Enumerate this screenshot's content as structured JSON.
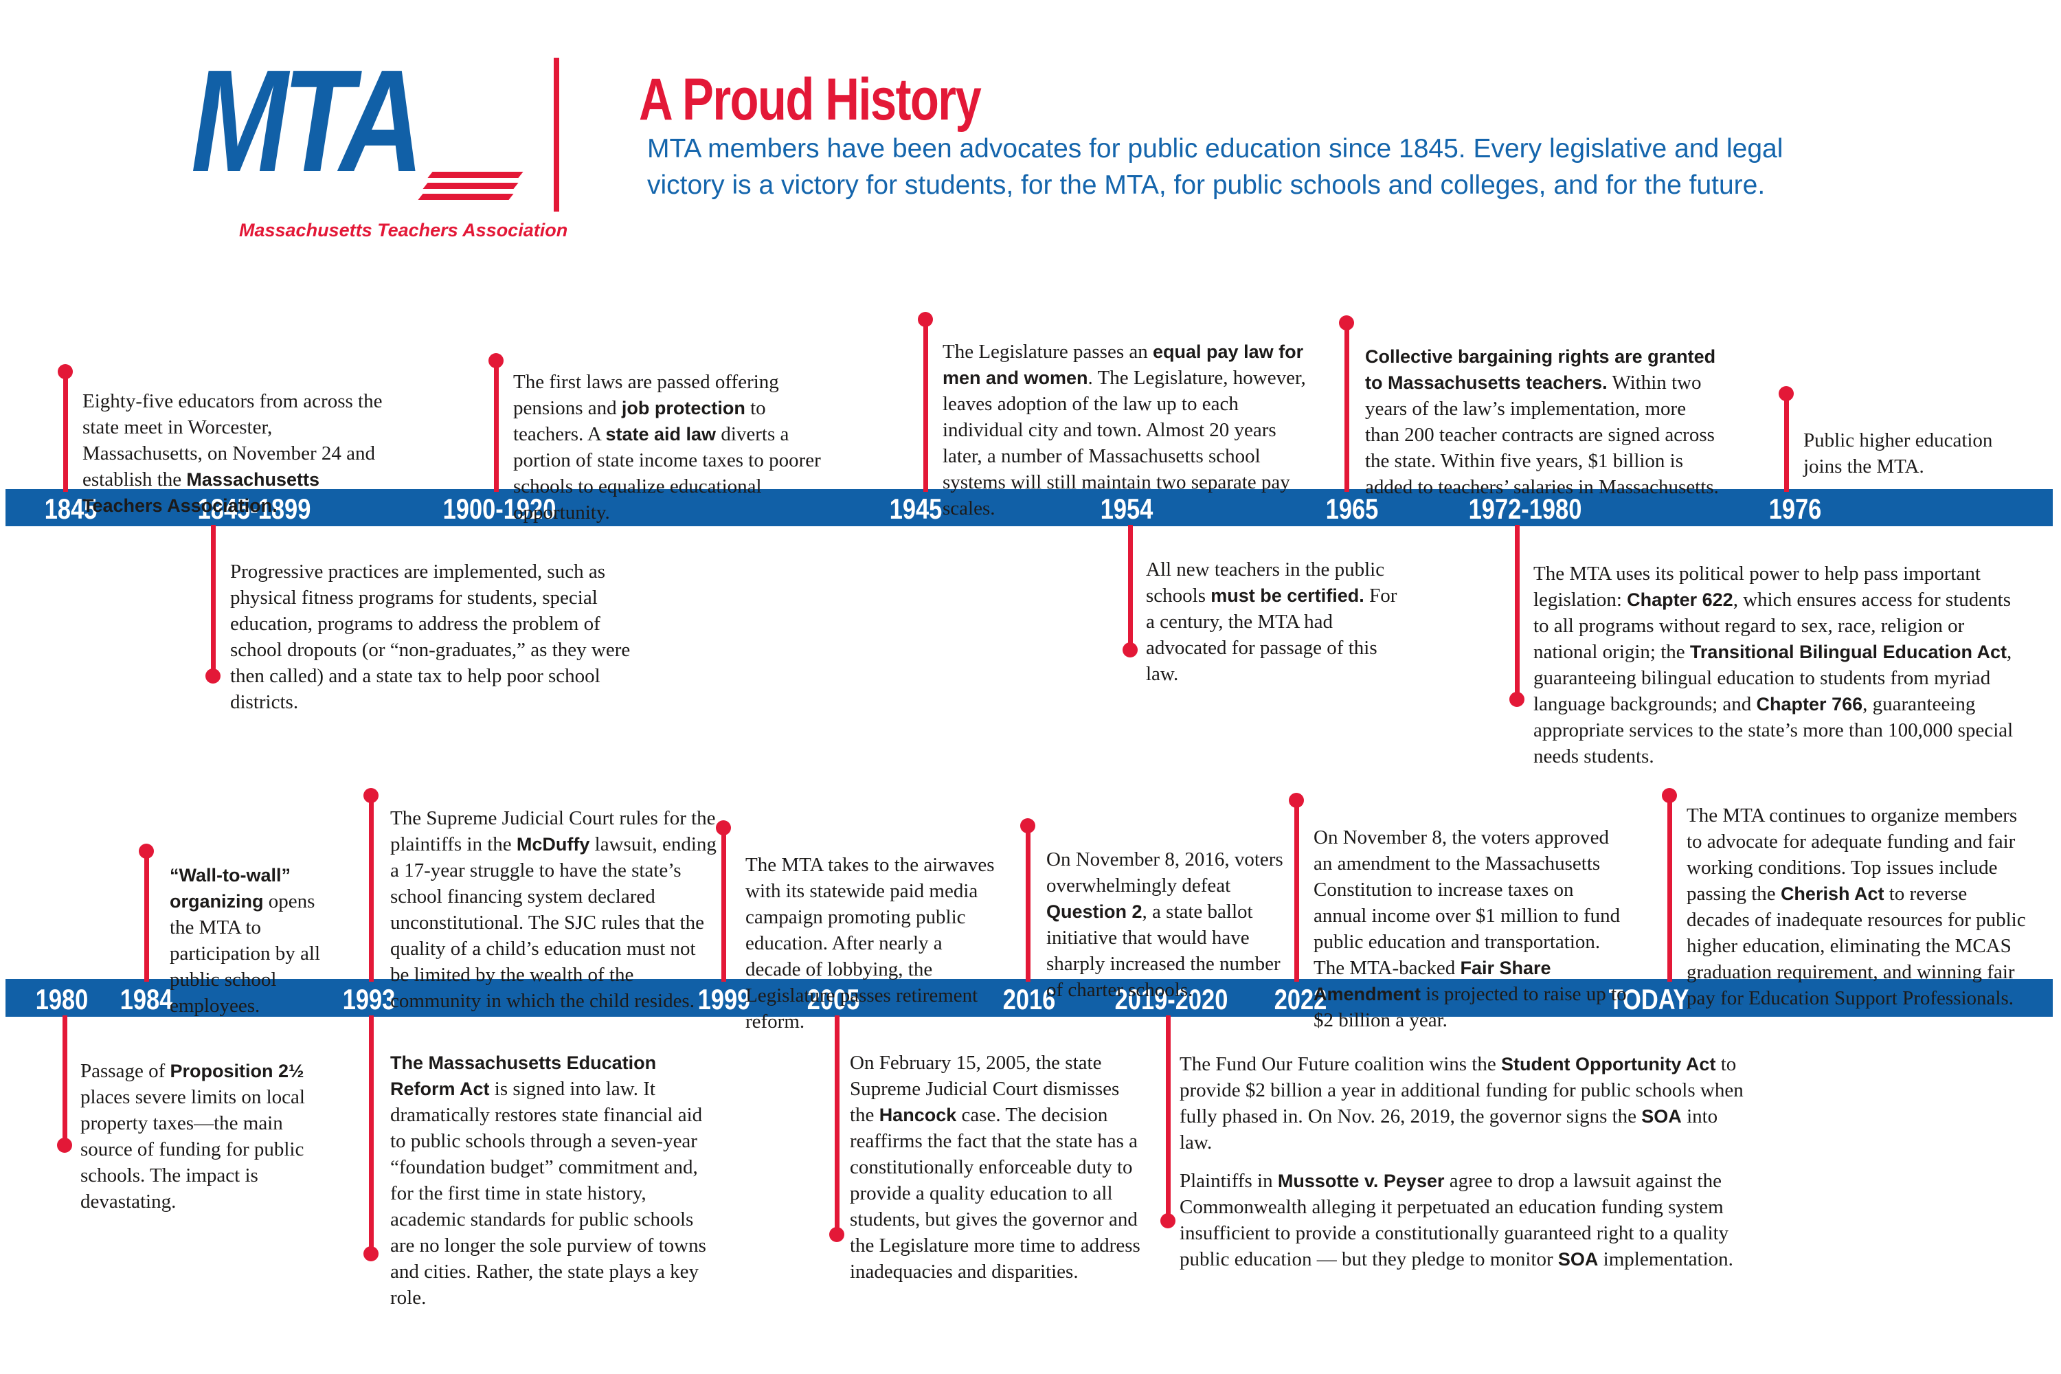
{
  "header": {
    "logo_acronym": "MTA",
    "logo_name": "Massachusetts Teachers Association",
    "title": "A Proud History",
    "subtitle": "MTA members have been advocates for public education since 1845. Every legislative and legal victory is a victory for students, for the MTA, for public schools and colleges, and for the future."
  },
  "colors": {
    "blue": "#1160a7",
    "red": "#e31837",
    "text": "#1c1a19"
  },
  "timelines": [
    {
      "labels": [
        {
          "id": "1845",
          "text": "1845"
        },
        {
          "id": "1845-1899",
          "text": "1845-1899"
        },
        {
          "id": "1900-1920",
          "text": "1900-1920"
        },
        {
          "id": "1945",
          "text": "1945"
        },
        {
          "id": "1954",
          "text": "1954"
        },
        {
          "id": "1965",
          "text": "1965"
        },
        {
          "id": "1972-1980",
          "text": "1972-1980"
        },
        {
          "id": "1976",
          "text": "1976"
        }
      ],
      "events": [
        {
          "id": "1845",
          "side": "above",
          "paragraphs": [
            [
              [
                "r",
                "Eighty-five educators from across the state meet in Worcester, Massachusetts, on November 24 and establish the "
              ],
              [
                "b",
                "Massachusetts Teachers Association."
              ]
            ]
          ]
        },
        {
          "id": "1845-1899",
          "side": "below",
          "paragraphs": [
            [
              [
                "r",
                "Progressive practices are implemented, such as physical fitness programs for students, special education, programs to address the problem of school dropouts (or “non-graduates,” as they were then called) and a state tax to help poor school districts."
              ]
            ]
          ]
        },
        {
          "id": "1900-1920",
          "side": "above",
          "paragraphs": [
            [
              [
                "r",
                "The first laws are passed offering pensions and "
              ],
              [
                "b",
                "job protection"
              ],
              [
                "r",
                " to teachers. A "
              ],
              [
                "b",
                "state aid law"
              ],
              [
                "r",
                " diverts a portion of state income taxes to poorer schools to equalize educational opportunity."
              ]
            ]
          ]
        },
        {
          "id": "1945",
          "side": "above",
          "paragraphs": [
            [
              [
                "r",
                "The Legislature passes an "
              ],
              [
                "b",
                "equal pay law for men and women"
              ],
              [
                "r",
                ". The Legislature, however, leaves adoption of the law up to each individual city and town. Almost 20 years later, a number of Massachusetts school systems will still maintain two separate pay scales."
              ]
            ]
          ]
        },
        {
          "id": "1954",
          "side": "below",
          "paragraphs": [
            [
              [
                "r",
                "All new teachers in the public schools "
              ],
              [
                "b",
                "must be certified."
              ],
              [
                "r",
                " For a century, the MTA had advocated for passage of this law."
              ]
            ]
          ]
        },
        {
          "id": "1965",
          "side": "above",
          "paragraphs": [
            [
              [
                "b",
                "Collective bargaining rights are granted to Massachusetts teachers."
              ],
              [
                "r",
                " Within two years of the law’s implementation, more than 200 teacher contracts are signed across the state. Within five years, $1 billion is added to teachers’ salaries in Massachusetts."
              ]
            ]
          ]
        },
        {
          "id": "1972-1980",
          "side": "below",
          "paragraphs": [
            [
              [
                "r",
                "The MTA uses its political power to help pass important legislation: "
              ],
              [
                "b",
                "Chapter 622"
              ],
              [
                "r",
                ", which ensures access for students to all programs without regard to sex, race, religion or national origin; the "
              ],
              [
                "b",
                "Transitional Bilingual Education Act"
              ],
              [
                "r",
                ", guaranteeing bilingual education to students from myriad language backgrounds; and "
              ],
              [
                "b",
                "Chapter 766"
              ],
              [
                "r",
                ", guaranteeing appropriate services to the state’s more than 100,000 special needs students."
              ]
            ]
          ]
        },
        {
          "id": "1976",
          "side": "above",
          "paragraphs": [
            [
              [
                "r",
                "Public higher education joins the MTA."
              ]
            ]
          ]
        }
      ]
    },
    {
      "labels": [
        {
          "id": "1980",
          "text": "1980"
        },
        {
          "id": "1984",
          "text": "1984"
        },
        {
          "id": "1993",
          "text": "1993"
        },
        {
          "id": "1999",
          "text": "1999"
        },
        {
          "id": "2005",
          "text": "2005"
        },
        {
          "id": "2016",
          "text": "2016"
        },
        {
          "id": "2019-2020",
          "text": "2019-2020"
        },
        {
          "id": "2022",
          "text": "2022"
        },
        {
          "id": "today",
          "text": "TODAY"
        }
      ],
      "events": [
        {
          "id": "1980",
          "side": "below",
          "paragraphs": [
            [
              [
                "r",
                "Passage of "
              ],
              [
                "b",
                "Proposition 2½"
              ],
              [
                "r",
                " places severe limits on local property taxes—the main source of funding for public schools. The impact is devastating."
              ]
            ]
          ]
        },
        {
          "id": "1984",
          "side": "above",
          "paragraphs": [
            [
              [
                "b",
                "“Wall-to-wall” organizing"
              ],
              [
                "r",
                " opens the MTA to participation by all public school employees."
              ]
            ]
          ]
        },
        {
          "id": "1993",
          "side": "above",
          "paragraphs": [
            [
              [
                "r",
                "The Supreme Judicial Court rules for the plaintiffs in the "
              ],
              [
                "b",
                "McDuffy"
              ],
              [
                "r",
                " lawsuit, ending a 17-year struggle to have the state’s school financing system declared unconstitutional. The SJC rules that the quality of a child’s education must not be limited by the wealth of the community in which the child resides."
              ]
            ]
          ]
        },
        {
          "id": "1993b",
          "side": "below",
          "paragraphs": [
            [
              [
                "b",
                "The Massachusetts Education Reform Act"
              ],
              [
                "r",
                " is signed into law. It dramatically restores state financial aid to public schools through a seven-year “foundation budget” commitment and, for the first time in state history, academic standards for public schools are no longer the sole purview of towns and cities. Rather, the state plays a key role."
              ]
            ]
          ]
        },
        {
          "id": "1999",
          "side": "above",
          "paragraphs": [
            [
              [
                "r",
                "The MTA takes to the airwaves with its statewide paid media campaign promoting public education. After nearly a decade of lobbying, the Legislature passes retirement reform."
              ]
            ]
          ]
        },
        {
          "id": "2005",
          "side": "below",
          "paragraphs": [
            [
              [
                "r",
                "On February 15, 2005, the state Supreme Judicial Court dismisses the "
              ],
              [
                "b",
                "Hancock"
              ],
              [
                "r",
                " case. The decision reaffirms the fact that the state has a constitutionally enforceable duty to provide a quality education to all students, but gives the governor and the Legislature more time to address inadequacies and disparities."
              ]
            ]
          ]
        },
        {
          "id": "2016",
          "side": "above",
          "paragraphs": [
            [
              [
                "r",
                "On November 8, 2016, voters overwhelmingly defeat "
              ],
              [
                "b",
                "Question 2"
              ],
              [
                "r",
                ", a state ballot initiative that would have sharply increased the number of charter schools."
              ]
            ]
          ]
        },
        {
          "id": "2019-2020",
          "side": "below",
          "paragraphs": [
            [
              [
                "r",
                "The Fund Our Future coalition wins the "
              ],
              [
                "b",
                "Student Opportunity Act"
              ],
              [
                "r",
                " to provide $2 billion a year in additional funding for public schools when fully phased in. On Nov. 26, 2019, the governor signs the "
              ],
              [
                "b",
                "SOA"
              ],
              [
                "r",
                " into law."
              ]
            ],
            [
              [
                "r",
                "Plaintiffs in "
              ],
              [
                "b",
                "Mussotte v. Peyser"
              ],
              [
                "r",
                " agree to drop a lawsuit against the Commonwealth alleging it perpetuated an education funding system insufficient to provide a constitutionally guaranteed right to a quality public education — but they pledge to monitor "
              ],
              [
                "b",
                "SOA"
              ],
              [
                "r",
                " implementation."
              ]
            ]
          ]
        },
        {
          "id": "2022",
          "side": "above",
          "paragraphs": [
            [
              [
                "r",
                "On November 8, the voters approved an amendment to the Massachusetts Constitution to increase taxes on annual income over $1 million to fund public education and transportation. The MTA-backed "
              ],
              [
                "b",
                "Fair Share Amendment"
              ],
              [
                "r",
                " is projected to raise up to $2 billion a year."
              ]
            ]
          ]
        },
        {
          "id": "today",
          "side": "above",
          "paragraphs": [
            [
              [
                "r",
                "The MTA continues to organize members to advocate for adequate funding and fair working conditions. Top issues include passing the "
              ],
              [
                "b",
                "Cherish Act"
              ],
              [
                "r",
                " to reverse decades of inadequate resources for public higher education, eliminating the MCAS graduation requirement, and winning fair pay for Education Support Professionals."
              ]
            ]
          ]
        }
      ]
    }
  ]
}
